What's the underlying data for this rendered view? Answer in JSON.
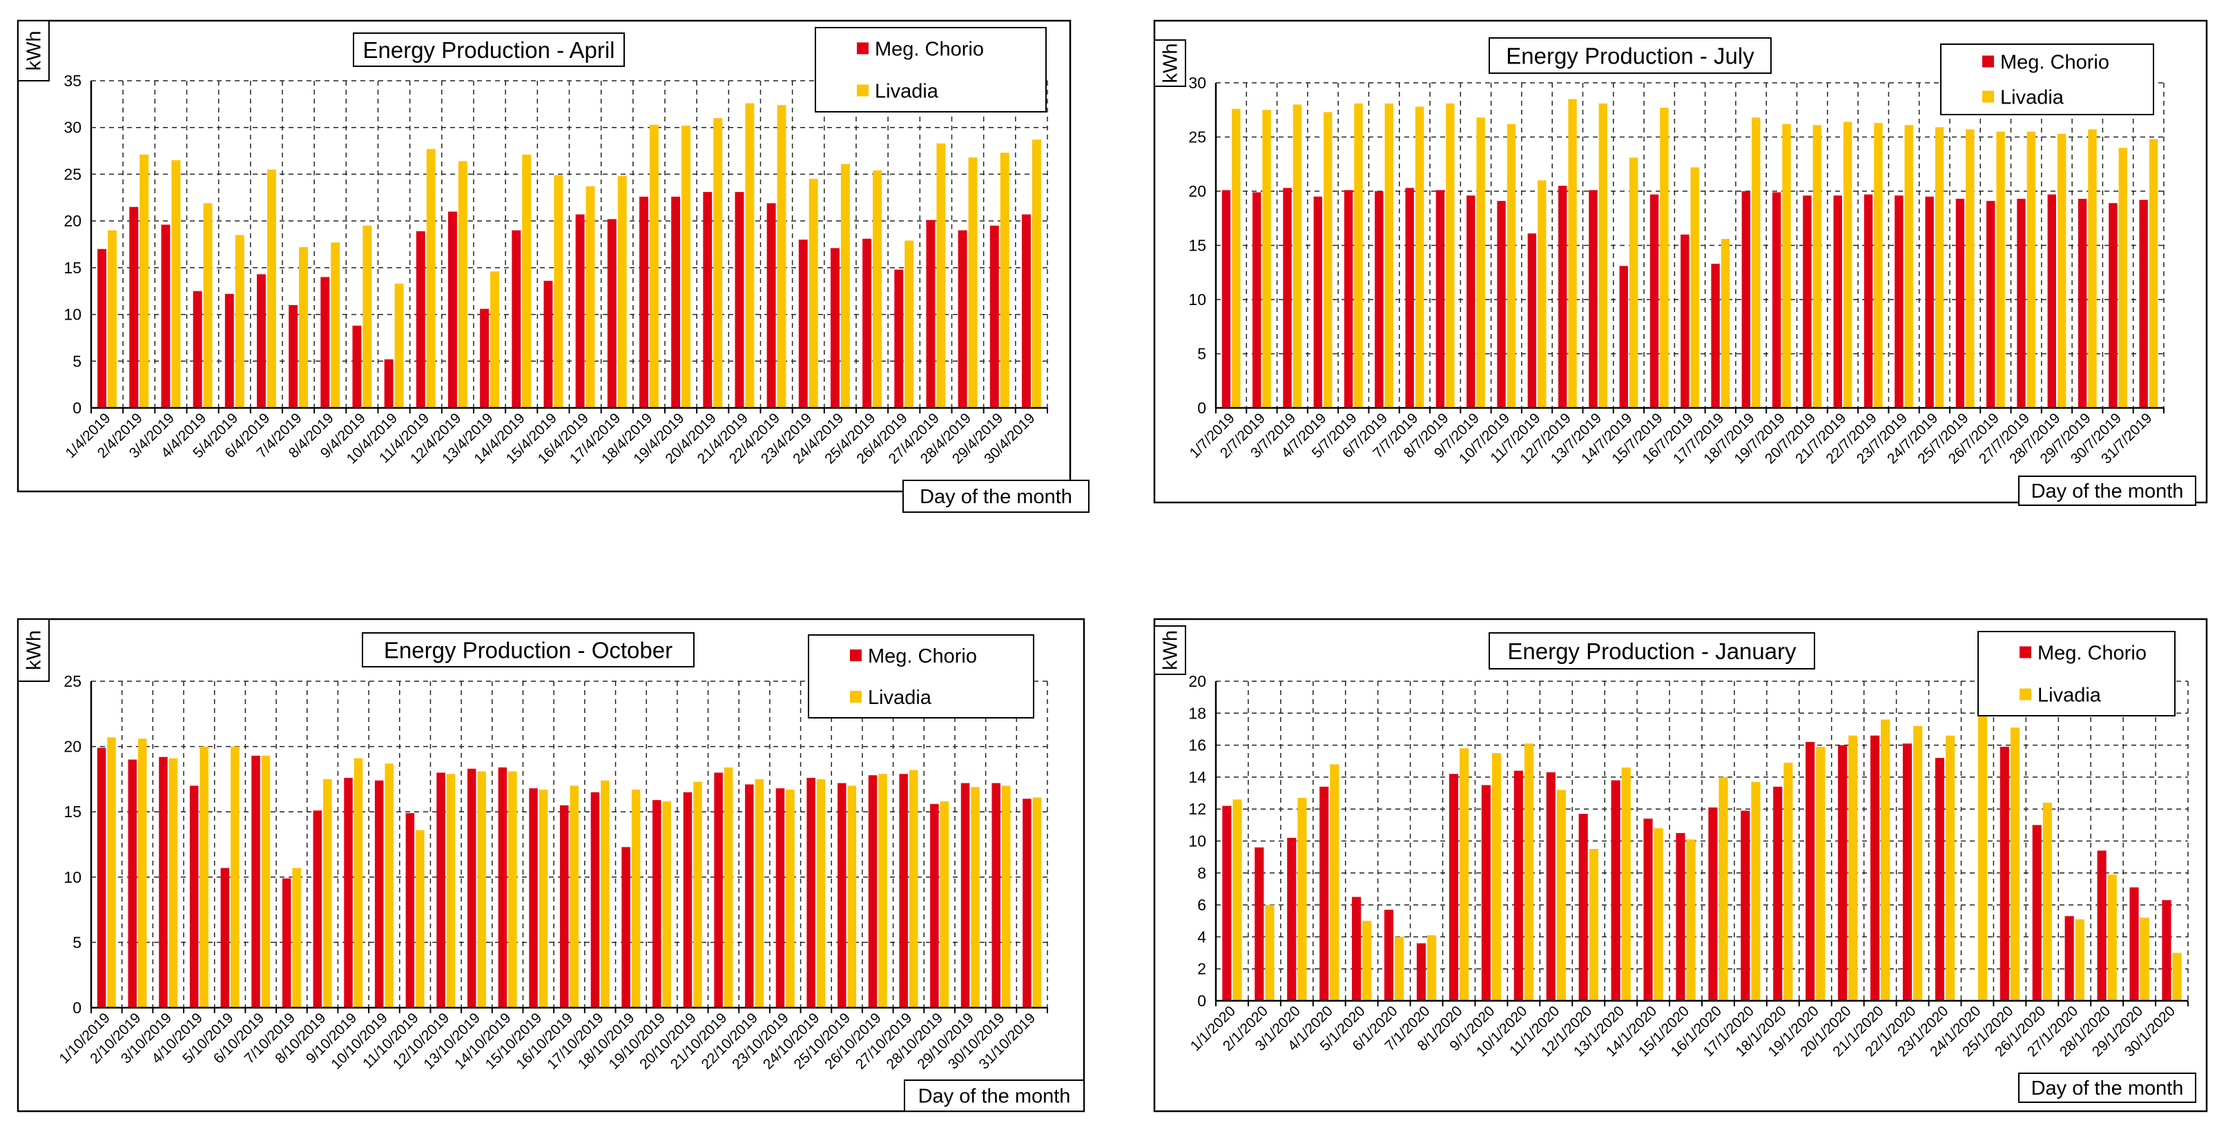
{
  "colors": {
    "meg": "#e00014",
    "liv": "#fbc400"
  },
  "chart_data": [
    {
      "type": "bar",
      "title": "Energy Production - April",
      "ylabel": "kWh",
      "xlabel": "Day of the month",
      "ylim": [
        0,
        35
      ],
      "yticks": [
        "0",
        "5",
        "10",
        "15",
        "20",
        "25",
        "30",
        "35"
      ],
      "legend_position": "top-right",
      "grid": true,
      "categories": [
        "1/4/2019",
        "2/4/2019",
        "3/4/2019",
        "4/4/2019",
        "5/4/2019",
        "6/4/2019",
        "7/4/2019",
        "8/4/2019",
        "9/4/2019",
        "10/4/2019",
        "11/4/2019",
        "12/4/2019",
        "13/4/2019",
        "14/4/2019",
        "15/4/2019",
        "16/4/2019",
        "17/4/2019",
        "18/4/2019",
        "19/4/2019",
        "20/4/2019",
        "21/4/2019",
        "22/4/2019",
        "23/4/2019",
        "24/4/2019",
        "25/4/2019",
        "26/4/2019",
        "27/4/2019",
        "28/4/2019",
        "29/4/2019",
        "30/4/2019"
      ],
      "series": [
        {
          "name": "Meg. Chorio",
          "values": [
            17,
            21.5,
            19.6,
            12.5,
            12.2,
            14.3,
            11,
            14,
            8.8,
            5.2,
            18.9,
            21,
            10.6,
            19,
            13.6,
            20.7,
            20.2,
            22.6,
            22.6,
            23.1,
            23.1,
            21.9,
            18,
            17.1,
            18.1,
            14.8,
            20.1,
            19,
            19.5,
            20.7
          ]
        },
        {
          "name": "Livadia",
          "values": [
            19,
            27.1,
            26.5,
            21.9,
            18.5,
            25.5,
            17.2,
            17.7,
            19.5,
            13.3,
            27.7,
            26.4,
            14.6,
            27.1,
            24.9,
            23.7,
            24.8,
            30.3,
            30.2,
            31,
            32.6,
            32.4,
            24.5,
            26.1,
            25.4,
            17.9,
            28.3,
            26.8,
            27.3,
            28.7
          ]
        }
      ]
    },
    {
      "type": "bar",
      "title": "Energy Production - July",
      "ylabel": "kWh",
      "xlabel": "Day of the month",
      "ylim": [
        0,
        30
      ],
      "yticks": [
        "0",
        "5",
        "10",
        "15",
        "20",
        "25",
        "30"
      ],
      "legend_position": "top-right",
      "grid": true,
      "categories": [
        "1/7/2019",
        "2/7/2019",
        "3/7/2019",
        "4/7/2019",
        "5/7/2019",
        "6/7/2019",
        "7/7/2019",
        "8/7/2019",
        "9/7/2019",
        "10/7/2019",
        "11/7/2019",
        "12/7/2019",
        "13/7/2019",
        "14/7/2019",
        "15/7/2019",
        "16/7/2019",
        "17/7/2019",
        "18/7/2019",
        "19/7/2019",
        "20/7/2019",
        "21/7/2019",
        "22/7/2019",
        "23/7/2019",
        "24/7/2019",
        "25/7/2019",
        "26/7/2019",
        "27/7/2019",
        "28/7/2019",
        "29/7/2019",
        "30/7/2019",
        "31/7/2019"
      ],
      "series": [
        {
          "name": "Meg. Chorio",
          "values": [
            20.1,
            19.9,
            20.3,
            19.5,
            20.1,
            20,
            20.3,
            20.1,
            19.6,
            19.1,
            16.1,
            20.5,
            20.1,
            13.1,
            19.7,
            16,
            13.3,
            20,
            19.9,
            19.6,
            19.6,
            19.7,
            19.6,
            19.5,
            19.3,
            19.1,
            19.3,
            19.7,
            19.3,
            18.9,
            19.2
          ]
        },
        {
          "name": "Livadia",
          "values": [
            27.6,
            27.5,
            28,
            27.3,
            28.1,
            28.1,
            27.8,
            28.1,
            26.8,
            26.2,
            21,
            28.5,
            28.1,
            23.1,
            27.7,
            22.2,
            15.6,
            26.8,
            26.2,
            26.1,
            26.4,
            26.3,
            26.1,
            25.9,
            25.7,
            25.5,
            25.5,
            25.3,
            25.7,
            24,
            24.8
          ]
        }
      ]
    },
    {
      "type": "bar",
      "title": "Energy Production - October",
      "ylabel": "kWh",
      "xlabel": "Day of the month",
      "ylim": [
        0,
        25
      ],
      "yticks": [
        "0",
        "5",
        "10",
        "15",
        "20",
        "25"
      ],
      "legend_position": "top-right",
      "grid": true,
      "categories": [
        "1/10/2019",
        "2/10/2019",
        "3/10/2019",
        "4/10/2019",
        "5/10/2019",
        "6/10/2019",
        "7/10/2019",
        "8/10/2019",
        "9/10/2019",
        "10/10/2019",
        "11/10/2019",
        "12/10/2019",
        "13/10/2019",
        "14/10/2019",
        "15/10/2019",
        "16/10/2019",
        "17/10/2019",
        "18/10/2019",
        "19/10/2019",
        "20/10/2019",
        "21/10/2019",
        "22/10/2019",
        "23/10/2019",
        "24/10/2019",
        "25/10/2019",
        "26/10/2019",
        "27/10/2019",
        "28/10/2019",
        "29/10/2019",
        "30/10/2019",
        "31/10/2019"
      ],
      "series": [
        {
          "name": "Meg. Chorio",
          "values": [
            19.9,
            19,
            19.2,
            17,
            10.7,
            19.3,
            9.9,
            15.1,
            17.6,
            17.4,
            14.9,
            18,
            18.3,
            18.4,
            16.8,
            15.5,
            16.5,
            12.3,
            15.9,
            16.5,
            18,
            17.1,
            16.8,
            17.6,
            17.2,
            17.8,
            17.9,
            15.6,
            17.2,
            17.2,
            16
          ]
        },
        {
          "name": "Livadia",
          "values": [
            20.7,
            20.6,
            19.1,
            20,
            20,
            19.3,
            10.7,
            17.5,
            19.1,
            18.7,
            13.6,
            17.9,
            18.1,
            18.1,
            16.7,
            17,
            17.4,
            16.7,
            15.8,
            17.3,
            18.4,
            17.5,
            16.7,
            17.5,
            17,
            17.9,
            18.2,
            15.8,
            16.9,
            17,
            16.1
          ]
        }
      ]
    },
    {
      "type": "bar",
      "title": "Energy Production - January",
      "ylabel": "kWh",
      "xlabel": "Day of the month",
      "ylim": [
        0,
        20
      ],
      "yticks": [
        "0",
        "2",
        "4",
        "6",
        "8",
        "10",
        "12",
        "14",
        "16",
        "18",
        "20"
      ],
      "legend_position": "top-right",
      "grid": true,
      "categories": [
        "1/1/2020",
        "2/1/2020",
        "3/1/2020",
        "4/1/2020",
        "5/1/2020",
        "6/1/2020",
        "7/1/2020",
        "8/1/2020",
        "9/1/2020",
        "10/1/2020",
        "11/1/2020",
        "12/1/2020",
        "13/1/2020",
        "14/1/2020",
        "15/1/2020",
        "16/1/2020",
        "17/1/2020",
        "18/1/2020",
        "19/1/2020",
        "20/1/2020",
        "21/1/2020",
        "22/1/2020",
        "23/1/2020",
        "24/1/2020",
        "25/1/2020",
        "26/1/2020",
        "27/1/2020",
        "28/1/2020",
        "29/1/2020",
        "30/1/2020"
      ],
      "series": [
        {
          "name": "Meg. Chorio",
          "values": [
            12.2,
            9.6,
            10.2,
            13.4,
            6.5,
            5.7,
            3.6,
            14.2,
            13.5,
            14.4,
            14.3,
            11.7,
            13.8,
            11.4,
            10.5,
            12.1,
            11.9,
            13.4,
            16.2,
            16,
            16.6,
            16.1,
            15.2,
            0,
            15.9,
            11,
            5.3,
            9.4,
            7.1,
            6.3
          ]
        },
        {
          "name": "Livadia",
          "values": [
            12.6,
            6,
            12.7,
            14.8,
            5,
            4,
            4.1,
            15.8,
            15.5,
            16.1,
            13.2,
            9.5,
            14.6,
            10.8,
            10.1,
            14,
            13.7,
            14.9,
            15.9,
            16.6,
            17.6,
            17.2,
            16.6,
            18,
            17.1,
            12.4,
            5.1,
            7.9,
            5.2,
            3
          ]
        }
      ]
    }
  ]
}
